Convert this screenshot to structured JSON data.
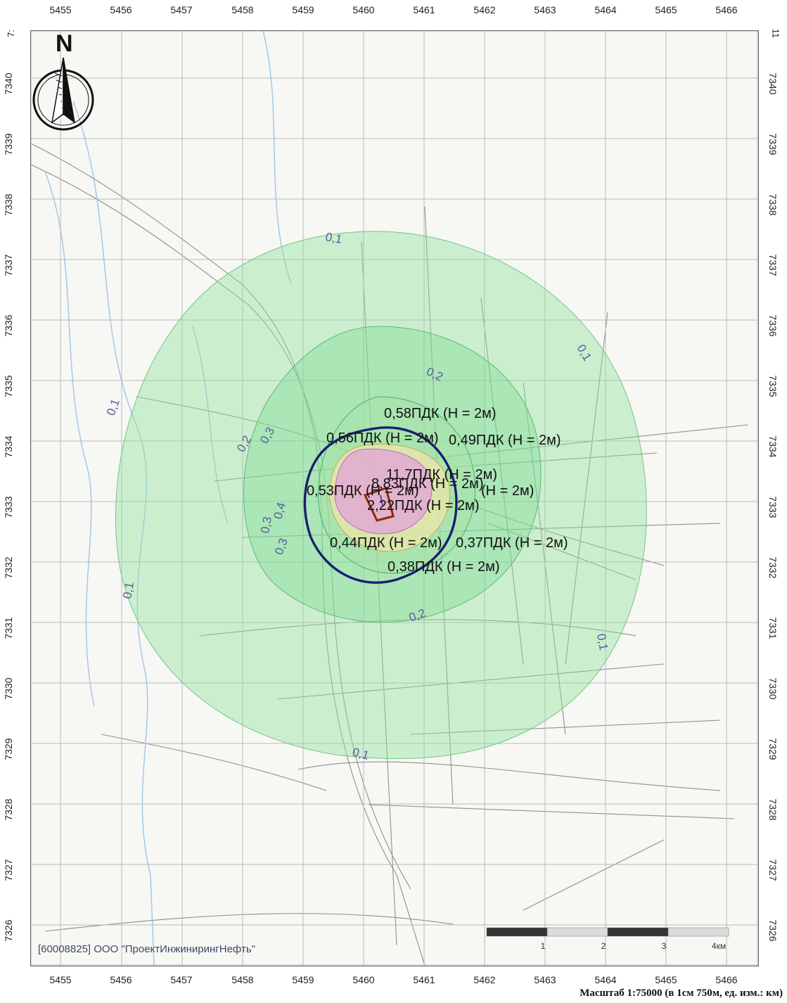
{
  "map": {
    "x_ticks": [
      "5455",
      "5456",
      "5457",
      "5458",
      "5459",
      "5460",
      "5461",
      "5462",
      "5463",
      "5464",
      "5465",
      "5466"
    ],
    "y_ticks": [
      "7340",
      "7339",
      "7338",
      "7337",
      "7336",
      "7335",
      "7334",
      "7333",
      "7332",
      "7331",
      "7330",
      "7329",
      "7328",
      "7327",
      "7326"
    ],
    "corner_top_left": "7:",
    "corner_top_right": "11",
    "north_label": "N",
    "credit": "[60008825] ООО \"ПроектИнжинирингНефть\"",
    "scale_caption": "Масштаб 1:75000 (в 1см 750м, ед. изм.: км)",
    "scalebar_labels": [
      "1",
      "2",
      "3",
      "4км"
    ],
    "isolines": [
      "0,1",
      "0,1",
      "0,1",
      "0,1",
      "0,1",
      "0,1",
      "0,2",
      "0,2",
      "0,2",
      "0,3",
      "0,3",
      "0,3",
      "0,4"
    ],
    "concentration_labels": [
      "0,58ПДК (Н = 2м)",
      "0,56ПДК (Н = 2м)",
      "0,49ПДК (Н = 2м)",
      "11,7ПДК (Н = 2м)",
      "8,83ПДК (Н = 2м)",
      "0,53ПДК (Н = 2м)",
      "2,22ПДК (Н = 2м)",
      "(Н = 2м)",
      "0,44ПДК (Н = 2м)",
      "0,37ПДК (Н = 2м)",
      "0,38ПДК (Н = 2м)"
    ],
    "colors": {
      "zone_outer": "#8fe39a",
      "zone_inner": "#6fd68a",
      "hotspot": "#e58ae8",
      "sanitary_zone": "#1a1f6e",
      "source": "#8a2a10",
      "isoline_text": "#5b5b9a",
      "river": "#9fc6e8"
    }
  }
}
